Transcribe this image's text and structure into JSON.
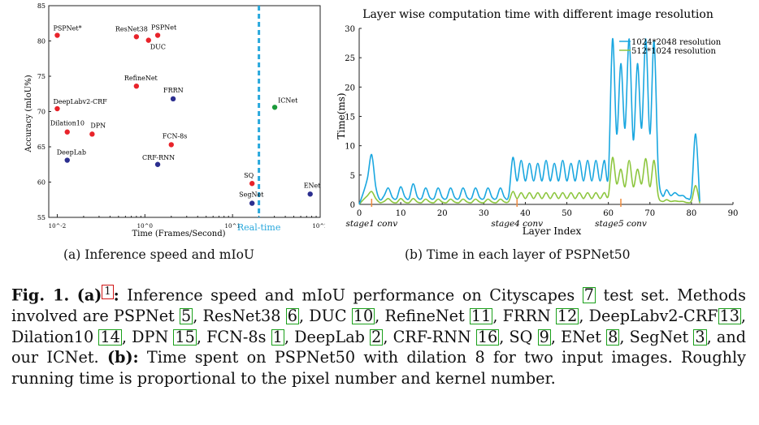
{
  "figure_a": {
    "subcaption": "(a) Inference speed and mIoU",
    "realtime_label": "Real-time",
    "chart_data": {
      "type": "scatter",
      "xscale": "log",
      "xlabel": "Time (Frames/Second)",
      "ylabel": "Accuracy (mIoU%)",
      "xlim": [
        0.08,
        100
      ],
      "ylim": [
        55,
        85
      ],
      "xticks": [
        "10^-2",
        "10^0",
        "10^1",
        "10^2"
      ],
      "yticks": [
        55,
        60,
        65,
        70,
        75,
        80,
        85
      ],
      "realtime_threshold_fps": 20,
      "points": [
        {
          "name": "PSPNet*",
          "fps": 0.1,
          "miou": 80.8,
          "color": "#e8232a"
        },
        {
          "name": "ResNet38",
          "fps": 0.8,
          "miou": 80.6,
          "color": "#e8232a"
        },
        {
          "name": "PSPNet",
          "fps": 1.4,
          "miou": 80.8,
          "color": "#e8232a"
        },
        {
          "name": "DUC",
          "fps": 1.1,
          "miou": 80.1,
          "color": "#e8232a"
        },
        {
          "name": "RefineNet",
          "fps": 0.8,
          "miou": 73.6,
          "color": "#e8232a"
        },
        {
          "name": "FRRN",
          "fps": 2.1,
          "miou": 71.8,
          "color": "#2b2e8f"
        },
        {
          "name": "DeepLabv2-CRF",
          "fps": 0.1,
          "miou": 70.4,
          "color": "#e8232a"
        },
        {
          "name": "ICNet",
          "fps": 30.3,
          "miou": 70.6,
          "color": "#1a9a3a"
        },
        {
          "name": "Dilation10",
          "fps": 0.13,
          "miou": 67.1,
          "color": "#e8232a"
        },
        {
          "name": "DPN",
          "fps": 0.25,
          "miou": 66.8,
          "color": "#e8232a"
        },
        {
          "name": "FCN-8s",
          "fps": 2.0,
          "miou": 65.3,
          "color": "#e8232a"
        },
        {
          "name": "DeepLab",
          "fps": 0.13,
          "miou": 63.1,
          "color": "#2b2e8f"
        },
        {
          "name": "CRF-RNN",
          "fps": 1.4,
          "miou": 62.5,
          "color": "#2b2e8f"
        },
        {
          "name": "SQ",
          "fps": 16.7,
          "miou": 59.8,
          "color": "#e8232a"
        },
        {
          "name": "SegNet",
          "fps": 16.7,
          "miou": 57.0,
          "color": "#2b2e8f"
        },
        {
          "name": "ENet",
          "fps": 76.9,
          "miou": 58.3,
          "color": "#2b2e8f"
        }
      ]
    }
  },
  "figure_b": {
    "subcaption": "(b) Time in each layer of PSPNet50",
    "annotations": [
      "stage1 conv",
      "stage4 conv",
      "stage5 conv"
    ],
    "chart_data": {
      "type": "line",
      "title": "Layer wise computation time with different image resolution",
      "xlabel": "Layer Index",
      "ylabel": "Time(ms)",
      "xlim": [
        0,
        90
      ],
      "ylim": [
        0,
        30
      ],
      "xticks": [
        0,
        10,
        20,
        30,
        40,
        50,
        60,
        70,
        80,
        90
      ],
      "yticks": [
        0,
        5,
        10,
        15,
        20,
        25,
        30
      ],
      "annotation_layers": [
        3,
        38,
        63
      ],
      "series": [
        {
          "name": "1024*2048 resolution",
          "color": "#1aa7e0",
          "x": [
            0,
            1,
            2,
            3,
            4,
            5,
            6,
            7,
            8,
            9,
            10,
            11,
            12,
            13,
            14,
            15,
            16,
            17,
            18,
            19,
            20,
            21,
            22,
            23,
            24,
            25,
            26,
            27,
            28,
            29,
            30,
            31,
            32,
            33,
            34,
            35,
            36,
            37,
            38,
            39,
            40,
            41,
            42,
            43,
            44,
            45,
            46,
            47,
            48,
            49,
            50,
            51,
            52,
            53,
            54,
            55,
            56,
            57,
            58,
            59,
            60,
            61,
            62,
            63,
            64,
            65,
            66,
            67,
            68,
            69,
            70,
            71,
            72,
            73,
            74,
            75,
            76,
            77,
            78,
            79,
            80,
            81,
            82
          ],
          "y": [
            0,
            2,
            4.5,
            8.5,
            3,
            0.8,
            1.5,
            2.8,
            1.2,
            1,
            3,
            1.3,
            1,
            3.5,
            1.3,
            1,
            2.8,
            1.2,
            1,
            2.8,
            1.2,
            1,
            2.8,
            1.2,
            1,
            2.8,
            1.2,
            1,
            2.8,
            1.2,
            1,
            2.8,
            1.2,
            1,
            2.8,
            1.2,
            1.5,
            8,
            4,
            7.5,
            4,
            7,
            4,
            7,
            4,
            7.5,
            4,
            7,
            4,
            7.5,
            4,
            7,
            4,
            7.5,
            4,
            7.5,
            4,
            7.5,
            4,
            7.5,
            5,
            28.2,
            12,
            24,
            13,
            28.2,
            11,
            24,
            13,
            28.2,
            12,
            27.8,
            6,
            1.5,
            2.5,
            1.5,
            2,
            1.5,
            1.5,
            1,
            2,
            12,
            0.5
          ]
        },
        {
          "name": "512*1024 resolution",
          "color": "#8dc63f",
          "x": [
            0,
            1,
            2,
            3,
            4,
            5,
            6,
            7,
            8,
            9,
            10,
            11,
            12,
            13,
            14,
            15,
            16,
            17,
            18,
            19,
            20,
            21,
            22,
            23,
            24,
            25,
            26,
            27,
            28,
            29,
            30,
            31,
            32,
            33,
            34,
            35,
            36,
            37,
            38,
            39,
            40,
            41,
            42,
            43,
            44,
            45,
            46,
            47,
            48,
            49,
            50,
            51,
            52,
            53,
            54,
            55,
            56,
            57,
            58,
            59,
            60,
            61,
            62,
            63,
            64,
            65,
            66,
            67,
            68,
            69,
            70,
            71,
            72,
            73,
            74,
            75,
            76,
            77,
            78,
            79,
            80,
            81,
            82
          ],
          "y": [
            0,
            0.8,
            1.5,
            2.2,
            1,
            0.3,
            0.5,
            1,
            0.4,
            0.3,
            1,
            0.4,
            0.3,
            1,
            0.4,
            0.3,
            0.9,
            0.4,
            0.3,
            0.9,
            0.4,
            0.3,
            0.9,
            0.4,
            0.3,
            0.9,
            0.4,
            0.3,
            0.9,
            0.4,
            0.3,
            0.9,
            0.4,
            0.3,
            0.9,
            0.4,
            0.5,
            2.2,
            1,
            2,
            1,
            2,
            1,
            2,
            1,
            2,
            1,
            2,
            1,
            2,
            1,
            2,
            1,
            2,
            1,
            2,
            1,
            2,
            1,
            2,
            1.5,
            8,
            3.5,
            6,
            3,
            7.5,
            3,
            6,
            3.5,
            7.8,
            3,
            7.5,
            1.5,
            0.5,
            0.8,
            0.5,
            0.6,
            0.5,
            0.5,
            0.3,
            0.6,
            3.2,
            0.2
          ]
        }
      ]
    }
  },
  "caption": {
    "fig_label": "Fig. 1.",
    "part_a": "(a)",
    "footnote_mark": "1",
    "colon_a": ":",
    "text_1": " Inference speed and mIoU performance on Cityscapes ",
    "ref_cityscapes": "7",
    "text_2": " test set. Methods involved are PSPNet ",
    "ref_pspnet": "5",
    "text_3": ", ResNet38 ",
    "ref_resnet38": "6",
    "text_4": ", DUC ",
    "ref_duc": "10",
    "text_5": ", RefineNet ",
    "ref_refinenet": "11",
    "text_6": ", FRRN ",
    "ref_frrn": "12",
    "text_7": ", DeepLabv2-CRF",
    "ref_deeplabv2": "13",
    "text_8": ", Dilation10 ",
    "ref_dilation10": "14",
    "text_9": ", DPN ",
    "ref_dpn": "15",
    "text_10": ", FCN-8s ",
    "ref_fcn": "1",
    "text_11": ", DeepLab ",
    "ref_deeplab": "2",
    "text_12": ", CRF-RNN ",
    "ref_crfrnn": "16",
    "text_13": ", SQ ",
    "ref_sq": "9",
    "text_14": ", ENet ",
    "ref_enet": "8",
    "text_15": ", SegNet ",
    "ref_segnet": "3",
    "text_16": ", and our ICNet. ",
    "part_b": "(b):",
    "text_17": " Time spent on PSPNet50 with dilation 8 for two input images. Roughly running time is proportional to the pixel number and kernel number."
  }
}
